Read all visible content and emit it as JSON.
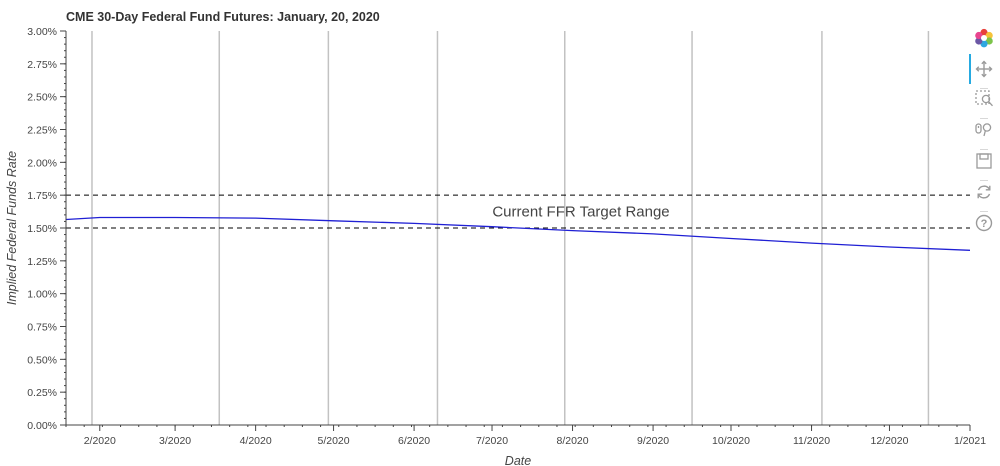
{
  "chart_data": {
    "type": "line",
    "title": "CME 30-Day Federal Fund Futures: January, 20, 2020",
    "xlabel": "Date",
    "ylabel": "Implied Federal Funds Rate",
    "x_tick_labels": [
      "2/2020",
      "3/2020",
      "4/2020",
      "5/2020",
      "6/2020",
      "7/2020",
      "8/2020",
      "9/2020",
      "10/2020",
      "11/2020",
      "12/2020",
      "1/2021"
    ],
    "y_tick_labels": [
      "0.00%",
      "0.25%",
      "0.50%",
      "0.75%",
      "1.00%",
      "1.25%",
      "1.50%",
      "1.75%",
      "2.00%",
      "2.25%",
      "2.50%",
      "2.75%",
      "3.00%"
    ],
    "ylim": [
      0,
      3.0
    ],
    "x": [
      "2020-01",
      "2020-02",
      "2020-03",
      "2020-04",
      "2020-05",
      "2020-06",
      "2020-07",
      "2020-08",
      "2020-09",
      "2020-10",
      "2020-11",
      "2020-12",
      "2021-01"
    ],
    "series": [
      {
        "values": [
          1.565,
          1.58,
          1.58,
          1.575,
          1.555,
          1.535,
          1.51,
          1.48,
          1.455,
          1.42,
          1.385,
          1.355,
          1.33
        ],
        "color": "#1f1fd4"
      }
    ],
    "target_range": {
      "lower": 1.5,
      "upper": 1.75,
      "label": "Current FFR Target Range"
    },
    "vertical_markers": [
      "2020-01-29",
      "2020-03-18",
      "2020-04-29",
      "2020-06-10",
      "2020-07-29",
      "2020-09-16",
      "2020-11-05",
      "2020-12-16"
    ],
    "grid": false,
    "colors": {
      "line": "#1f1fd4",
      "marker": "#c2c2c2",
      "range": "#000000",
      "axis": "#444444"
    }
  },
  "toolbar": {
    "tools": [
      {
        "name": "bokeh-logo-icon"
      },
      {
        "name": "pan-icon"
      },
      {
        "name": "box-zoom-icon"
      },
      {
        "name": "wheel-zoom-icon"
      },
      {
        "name": "save-icon"
      },
      {
        "name": "reset-icon"
      },
      {
        "name": "help-icon"
      }
    ]
  }
}
